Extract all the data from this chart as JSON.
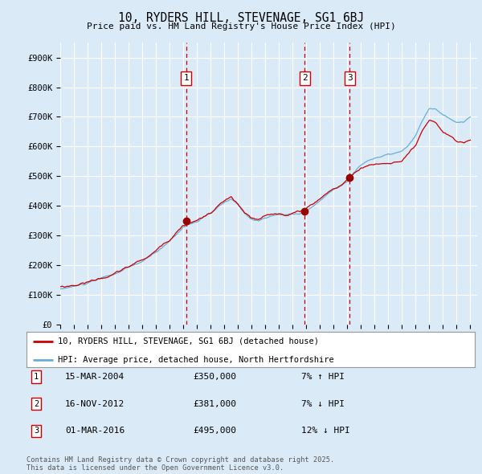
{
  "title": "10, RYDERS HILL, STEVENAGE, SG1 6BJ",
  "subtitle": "Price paid vs. HM Land Registry's House Price Index (HPI)",
  "ylabel_ticks": [
    "£0",
    "£100K",
    "£200K",
    "£300K",
    "£400K",
    "£500K",
    "£600K",
    "£700K",
    "£800K",
    "£900K"
  ],
  "ytick_values": [
    0,
    100000,
    200000,
    300000,
    400000,
    500000,
    600000,
    700000,
    800000,
    900000
  ],
  "ylim": [
    0,
    950000
  ],
  "xlim_start": 1995.0,
  "xlim_end": 2025.5,
  "background_color": "#daeaf7",
  "plot_bg_color": "#daeaf7",
  "grid_color": "#ffffff",
  "red_line_color": "#cc0000",
  "blue_line_color": "#6aaed6",
  "transaction_marker_color": "#990000",
  "vline_color": "#cc0000",
  "legend_label_red": "10, RYDERS HILL, STEVENAGE, SG1 6BJ (detached house)",
  "legend_label_blue": "HPI: Average price, detached house, North Hertfordshire",
  "transactions": [
    {
      "id": 1,
      "date_label": "15-MAR-2004",
      "price": 350000,
      "pct": "7%",
      "dir": "↑",
      "year": 2004.21
    },
    {
      "id": 2,
      "date_label": "16-NOV-2012",
      "price": 381000,
      "pct": "7%",
      "dir": "↓",
      "year": 2012.88
    },
    {
      "id": 3,
      "date_label": "01-MAR-2016",
      "price": 495000,
      "pct": "12%",
      "dir": "↓",
      "year": 2016.17
    }
  ],
  "footer_text": "Contains HM Land Registry data © Crown copyright and database right 2025.\nThis data is licensed under the Open Government Licence v3.0."
}
